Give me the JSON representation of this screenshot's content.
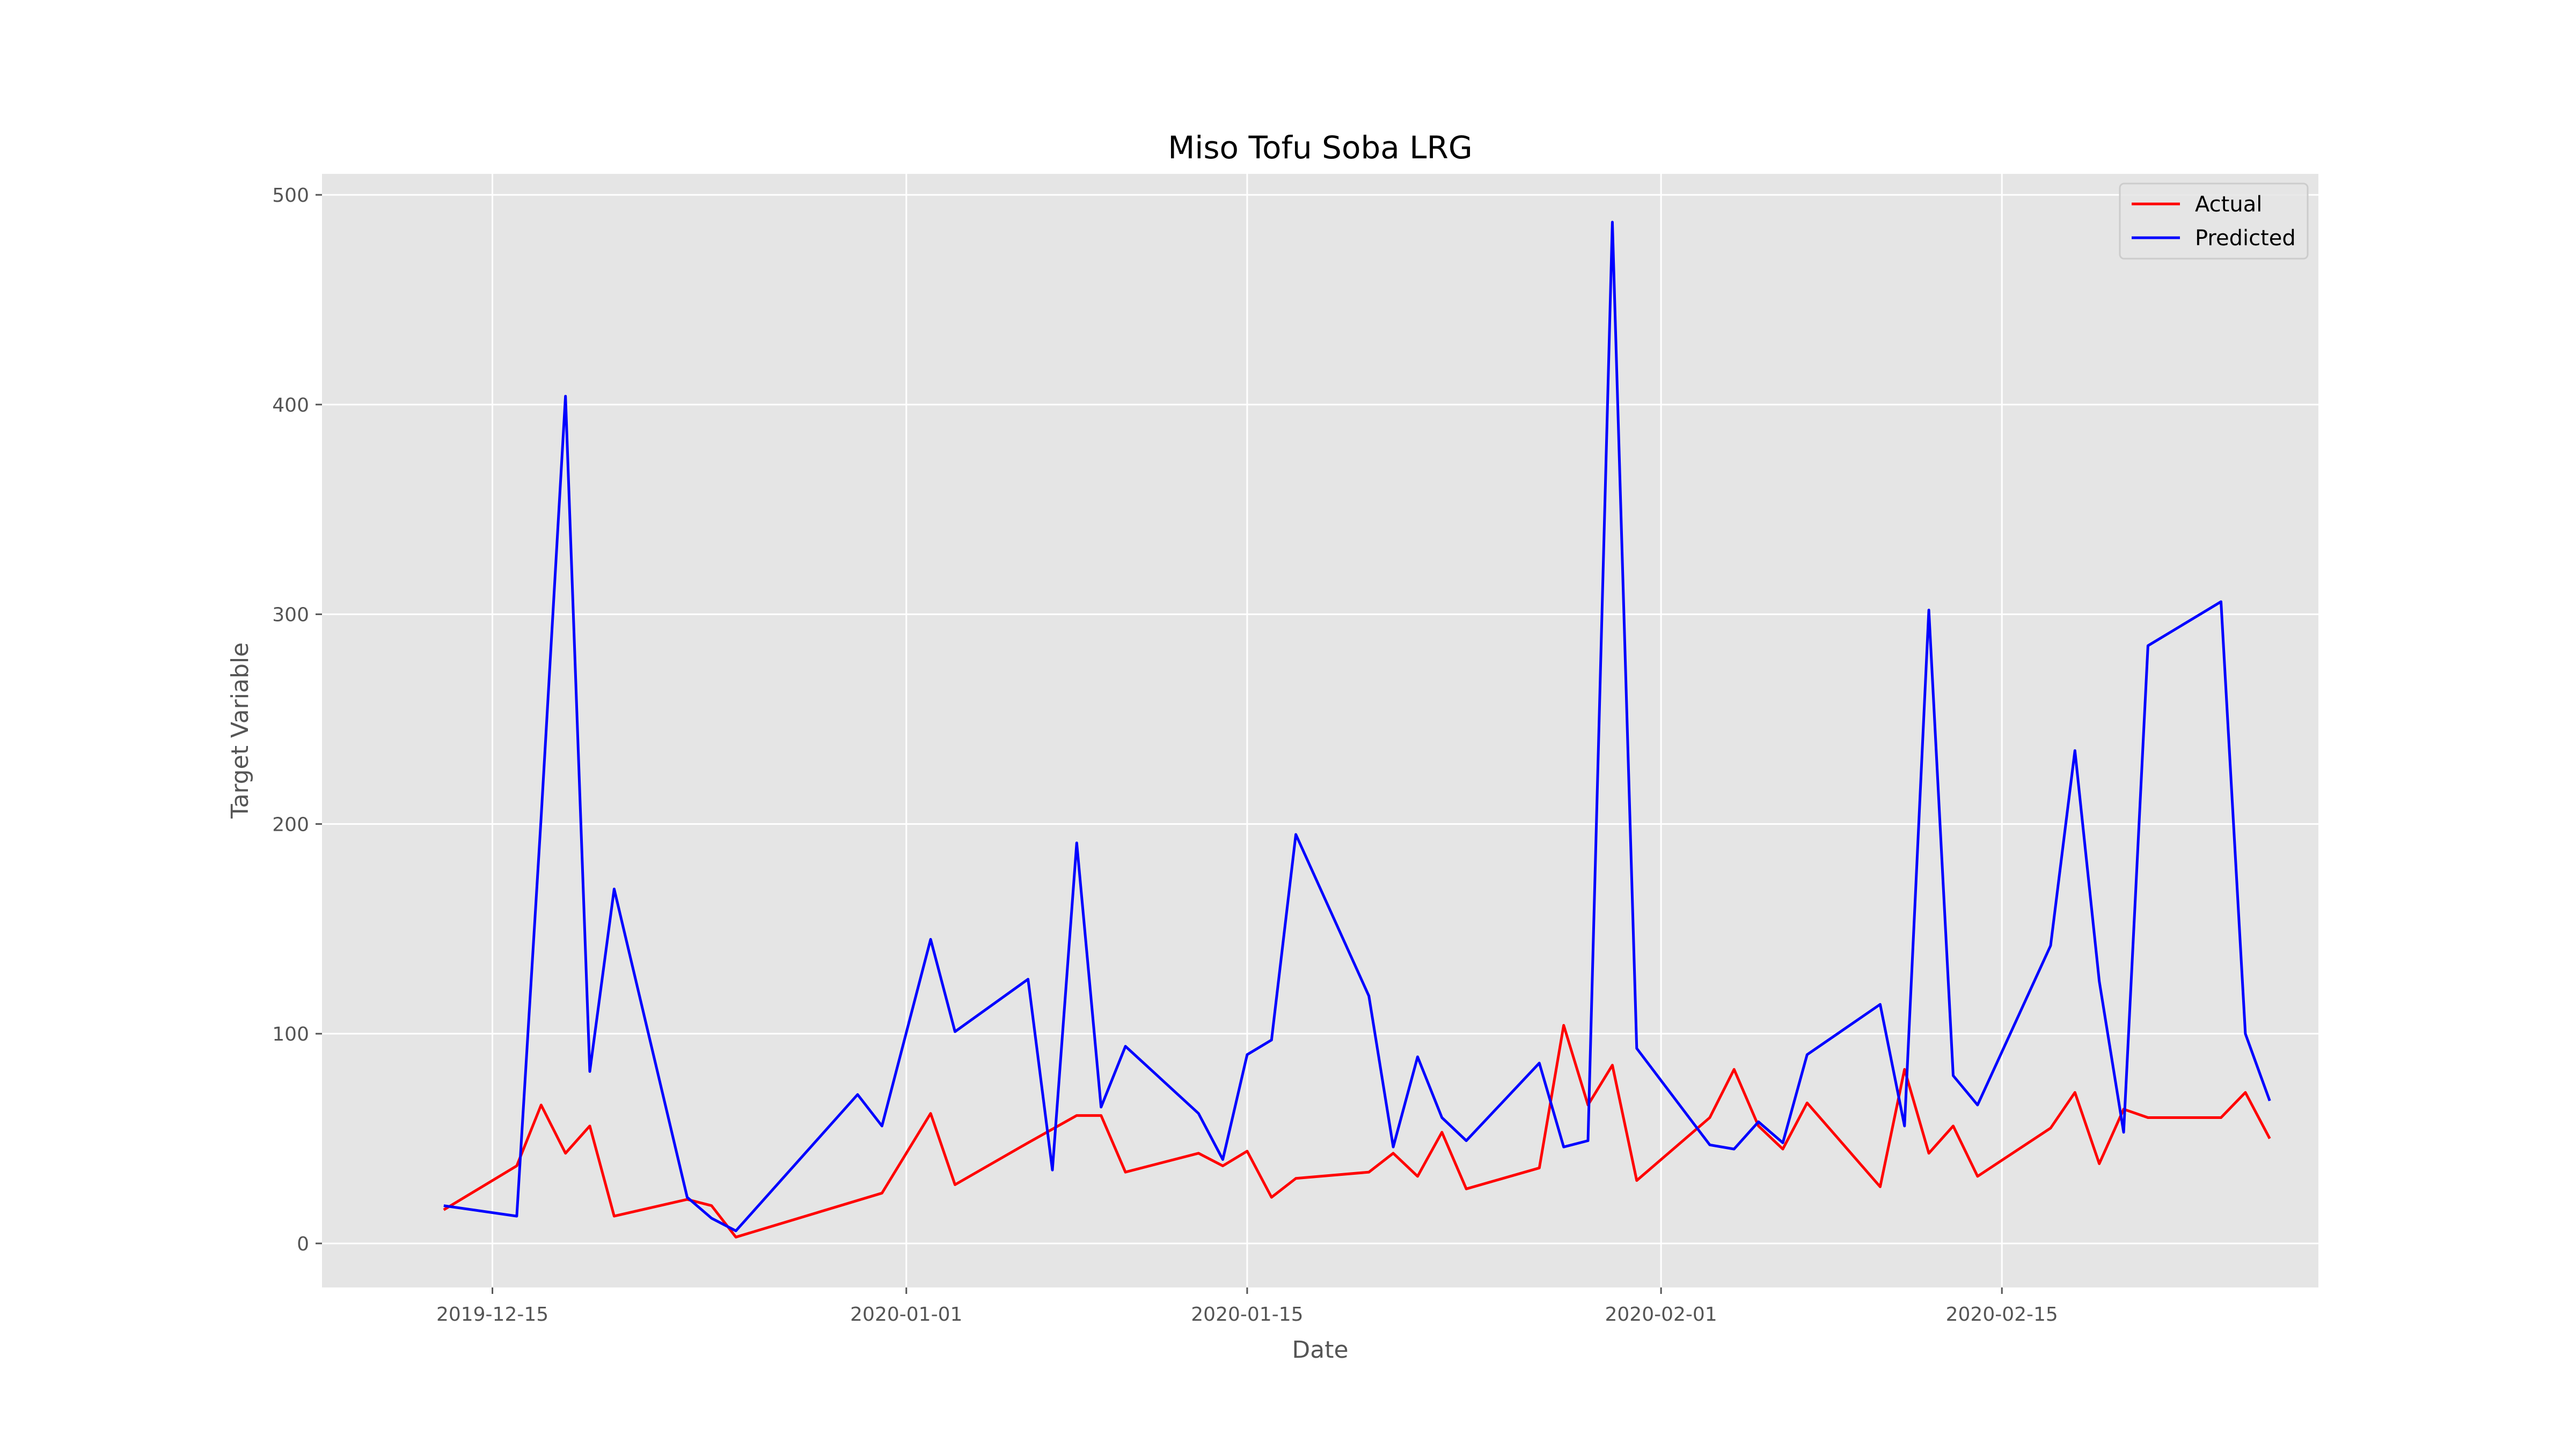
{
  "chart_data": {
    "type": "line",
    "title": "Miso Tofu Soba LRG",
    "xlabel": "Date",
    "ylabel": "Target Variable",
    "x_ticks": [
      "2019-12-15",
      "2020-01-01",
      "2020-01-15",
      "2020-02-01",
      "2020-02-15"
    ],
    "y_ticks": [
      0,
      100,
      200,
      300,
      400,
      500
    ],
    "ylim": [
      -21,
      510
    ],
    "xlim": [
      "2019-12-08",
      "2020-02-28"
    ],
    "grid": true,
    "legend_position": "top-right",
    "series": [
      {
        "name": "Actual",
        "color": "#ff0000",
        "points": [
          [
            "2019-12-13",
            16
          ],
          [
            "2019-12-16",
            37
          ],
          [
            "2019-12-17",
            66
          ],
          [
            "2019-12-18",
            43
          ],
          [
            "2019-12-19",
            56
          ],
          [
            "2019-12-20",
            13
          ],
          [
            "2019-12-23",
            21
          ],
          [
            "2019-12-24",
            18
          ],
          [
            "2019-12-25",
            3
          ],
          [
            "2019-12-31",
            24
          ],
          [
            "2020-01-02",
            62
          ],
          [
            "2020-01-03",
            28
          ],
          [
            "2020-01-06",
            48
          ],
          [
            "2020-01-08",
            61
          ],
          [
            "2020-01-09",
            61
          ],
          [
            "2020-01-10",
            34
          ],
          [
            "2020-01-13",
            43
          ],
          [
            "2020-01-14",
            37
          ],
          [
            "2020-01-15",
            44
          ],
          [
            "2020-01-16",
            22
          ],
          [
            "2020-01-17",
            31
          ],
          [
            "2020-01-20",
            34
          ],
          [
            "2020-01-21",
            43
          ],
          [
            "2020-01-22",
            32
          ],
          [
            "2020-01-23",
            53
          ],
          [
            "2020-01-24",
            26
          ],
          [
            "2020-01-27",
            36
          ],
          [
            "2020-01-28",
            104
          ],
          [
            "2020-01-29",
            66
          ],
          [
            "2020-01-30",
            85
          ],
          [
            "2020-01-31",
            30
          ],
          [
            "2020-02-03",
            60
          ],
          [
            "2020-02-04",
            83
          ],
          [
            "2020-02-05",
            56
          ],
          [
            "2020-02-06",
            45
          ],
          [
            "2020-02-07",
            67
          ],
          [
            "2020-02-10",
            27
          ],
          [
            "2020-02-11",
            83
          ],
          [
            "2020-02-12",
            43
          ],
          [
            "2020-02-13",
            56
          ],
          [
            "2020-02-14",
            32
          ],
          [
            "2020-02-17",
            55
          ],
          [
            "2020-02-18",
            72
          ],
          [
            "2020-02-19",
            38
          ],
          [
            "2020-02-20",
            64
          ],
          [
            "2020-02-21",
            60
          ],
          [
            "2020-02-24",
            60
          ],
          [
            "2020-02-25",
            72
          ],
          [
            "2020-02-26",
            50
          ]
        ]
      },
      {
        "name": "Predicted",
        "color": "#0000ff",
        "points": [
          [
            "2019-12-13",
            18
          ],
          [
            "2019-12-16",
            13
          ],
          [
            "2019-12-17",
            203
          ],
          [
            "2019-12-18",
            404
          ],
          [
            "2019-12-19",
            82
          ],
          [
            "2019-12-20",
            169
          ],
          [
            "2019-12-23",
            22
          ],
          [
            "2019-12-24",
            12
          ],
          [
            "2019-12-25",
            6
          ],
          [
            "2019-12-30",
            71
          ],
          [
            "2019-12-31",
            56
          ],
          [
            "2020-01-02",
            145
          ],
          [
            "2020-01-03",
            101
          ],
          [
            "2020-01-06",
            126
          ],
          [
            "2020-01-07",
            35
          ],
          [
            "2020-01-08",
            191
          ],
          [
            "2020-01-09",
            65
          ],
          [
            "2020-01-10",
            94
          ],
          [
            "2020-01-13",
            62
          ],
          [
            "2020-01-14",
            40
          ],
          [
            "2020-01-15",
            90
          ],
          [
            "2020-01-16",
            97
          ],
          [
            "2020-01-17",
            195
          ],
          [
            "2020-01-20",
            118
          ],
          [
            "2020-01-21",
            46
          ],
          [
            "2020-01-22",
            89
          ],
          [
            "2020-01-23",
            60
          ],
          [
            "2020-01-24",
            49
          ],
          [
            "2020-01-27",
            86
          ],
          [
            "2020-01-28",
            46
          ],
          [
            "2020-01-29",
            49
          ],
          [
            "2020-01-30",
            487
          ],
          [
            "2020-01-31",
            93
          ],
          [
            "2020-02-03",
            47
          ],
          [
            "2020-02-04",
            45
          ],
          [
            "2020-02-05",
            58
          ],
          [
            "2020-02-06",
            48
          ],
          [
            "2020-02-07",
            90
          ],
          [
            "2020-02-10",
            114
          ],
          [
            "2020-02-11",
            56
          ],
          [
            "2020-02-12",
            302
          ],
          [
            "2020-02-13",
            80
          ],
          [
            "2020-02-14",
            66
          ],
          [
            "2020-02-17",
            142
          ],
          [
            "2020-02-18",
            235
          ],
          [
            "2020-02-19",
            125
          ],
          [
            "2020-02-20",
            53
          ],
          [
            "2020-02-21",
            285
          ],
          [
            "2020-02-24",
            306
          ],
          [
            "2020-02-25",
            100
          ],
          [
            "2020-02-26",
            68
          ]
        ]
      }
    ]
  }
}
